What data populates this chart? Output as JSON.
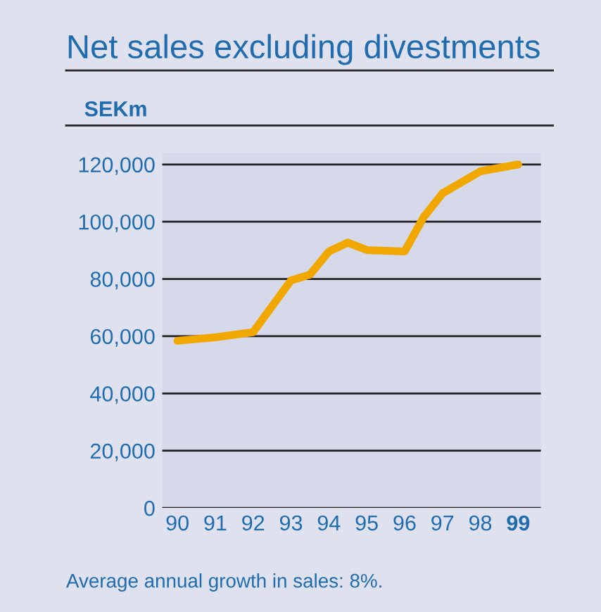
{
  "chart_data": {
    "type": "line",
    "title": "Net sales excluding divestments",
    "ylabel": "SEKm",
    "x": [
      90,
      91,
      92,
      93,
      93.5,
      94,
      94.5,
      95,
      96,
      96.5,
      97,
      98,
      99
    ],
    "series": [
      {
        "color": "#f0a800",
        "values": [
          58400,
          59600,
          61400,
          79500,
          81500,
          89600,
          92700,
          90100,
          89600,
          101500,
          109900,
          117600,
          120000
        ]
      }
    ],
    "xlim": [
      89.6,
      99.6
    ],
    "xticks": [
      90,
      91,
      92,
      93,
      94,
      95,
      96,
      97,
      98,
      99
    ],
    "ylim": [
      0,
      124000
    ],
    "yticks": [
      {
        "value": 0,
        "label": "0"
      },
      {
        "value": 20000,
        "label": "20,000"
      },
      {
        "value": 40000,
        "label": "40,000"
      },
      {
        "value": 60000,
        "label": "60,000"
      },
      {
        "value": 80000,
        "label": "80,000"
      },
      {
        "value": 100000,
        "label": "100,000"
      },
      {
        "value": 120000,
        "label": "120,000"
      }
    ],
    "grid": "y",
    "marker": "none",
    "line_style": "solid",
    "annotations": [
      "Average annual growth in sales: 8%."
    ]
  }
}
